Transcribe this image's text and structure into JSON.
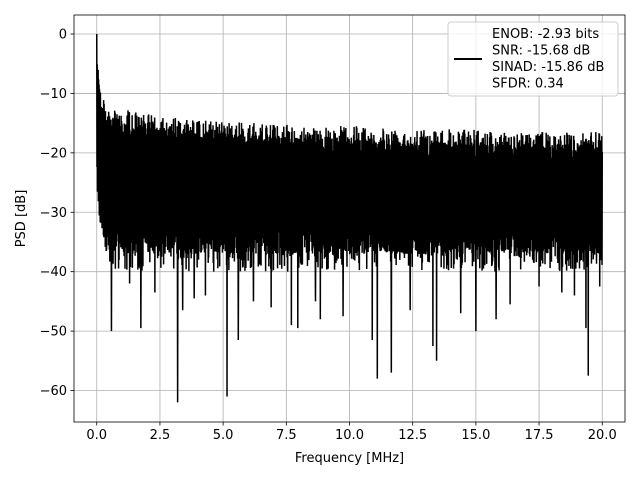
{
  "chart_data": {
    "type": "line",
    "title": "",
    "xlabel": "Frequency [MHz]",
    "ylabel": "PSD [dB]",
    "xlim": [
      -0.9,
      20.9
    ],
    "ylim": [
      -65.3,
      3.2
    ],
    "xticks": [
      0.0,
      2.5,
      5.0,
      7.5,
      10.0,
      12.5,
      15.0,
      17.5,
      20.0
    ],
    "xtick_labels": [
      "0.0",
      "2.5",
      "5.0",
      "7.5",
      "10.0",
      "12.5",
      "15.0",
      "17.5",
      "20.0"
    ],
    "yticks": [
      0,
      -10,
      -20,
      -30,
      -40,
      -50,
      -60
    ],
    "ytick_labels": [
      "0",
      "−10",
      "−20",
      "−30",
      "−40",
      "−50",
      "−60"
    ],
    "grid": true,
    "legend_position": "top-right",
    "legend_lines": [
      "ENOB: -2.93 bits",
      "SNR: -15.68 dB",
      "SINAD: -15.86 dB",
      "SFDR: 0.34"
    ],
    "series": [
      {
        "color": "#000000",
        "envelope": {
          "x": [
            0.0,
            0.05,
            0.1,
            0.2,
            0.4,
            0.6,
            1.0,
            1.5,
            2.0,
            3.0,
            4.0,
            5.0,
            6.0,
            7.0,
            8.0,
            9.0,
            10.0,
            11.0,
            12.0,
            13.0,
            14.0,
            15.0,
            16.0,
            17.0,
            18.0,
            19.0,
            20.0
          ],
          "upper": [
            0.0,
            -3.0,
            -8.0,
            -10.0,
            -12.0,
            -13.0,
            -12.5,
            -13.0,
            -13.5,
            -14.0,
            -14.5,
            -14.5,
            -15.0,
            -15.0,
            -15.5,
            -15.5,
            -15.5,
            -15.5,
            -16.0,
            -16.0,
            -16.0,
            -16.0,
            -16.5,
            -16.5,
            -16.5,
            -16.5,
            -16.5
          ],
          "lower": [
            -26.0,
            -28.0,
            -32.0,
            -33.0,
            -36.0,
            -37.0,
            -37.0,
            -37.0,
            -37.0,
            -37.0,
            -37.0,
            -37.0,
            -37.0,
            -37.0,
            -37.0,
            -37.0,
            -37.0,
            -37.0,
            -37.0,
            -37.0,
            -37.0,
            -37.0,
            -37.0,
            -37.0,
            -37.0,
            -37.0,
            -37.0
          ]
        },
        "dips": [
          {
            "x": 0.58,
            "y": -50.0
          },
          {
            "x": 1.3,
            "y": -42.0
          },
          {
            "x": 1.75,
            "y": -49.5
          },
          {
            "x": 2.3,
            "y": -43.5
          },
          {
            "x": 3.2,
            "y": -62.0
          },
          {
            "x": 3.4,
            "y": -46.5
          },
          {
            "x": 3.85,
            "y": -44.5
          },
          {
            "x": 4.3,
            "y": -44.0
          },
          {
            "x": 5.15,
            "y": -61.0
          },
          {
            "x": 5.6,
            "y": -51.5
          },
          {
            "x": 6.2,
            "y": -45.0
          },
          {
            "x": 6.9,
            "y": -46.0
          },
          {
            "x": 7.7,
            "y": -49.0
          },
          {
            "x": 7.95,
            "y": -49.5
          },
          {
            "x": 8.65,
            "y": -45.0
          },
          {
            "x": 8.85,
            "y": -48.0
          },
          {
            "x": 9.75,
            "y": -47.5
          },
          {
            "x": 10.9,
            "y": -51.5
          },
          {
            "x": 11.1,
            "y": -58.0
          },
          {
            "x": 11.65,
            "y": -57.0
          },
          {
            "x": 12.4,
            "y": -46.5
          },
          {
            "x": 13.3,
            "y": -52.5
          },
          {
            "x": 13.45,
            "y": -55.0
          },
          {
            "x": 14.4,
            "y": -47.0
          },
          {
            "x": 15.0,
            "y": -50.0
          },
          {
            "x": 15.8,
            "y": -48.0
          },
          {
            "x": 16.35,
            "y": -45.5
          },
          {
            "x": 17.5,
            "y": -42.5
          },
          {
            "x": 18.4,
            "y": -43.5
          },
          {
            "x": 18.9,
            "y": -44.0
          },
          {
            "x": 19.35,
            "y": -49.5
          },
          {
            "x": 19.45,
            "y": -57.5
          },
          {
            "x": 19.9,
            "y": -42.5
          }
        ]
      }
    ]
  }
}
